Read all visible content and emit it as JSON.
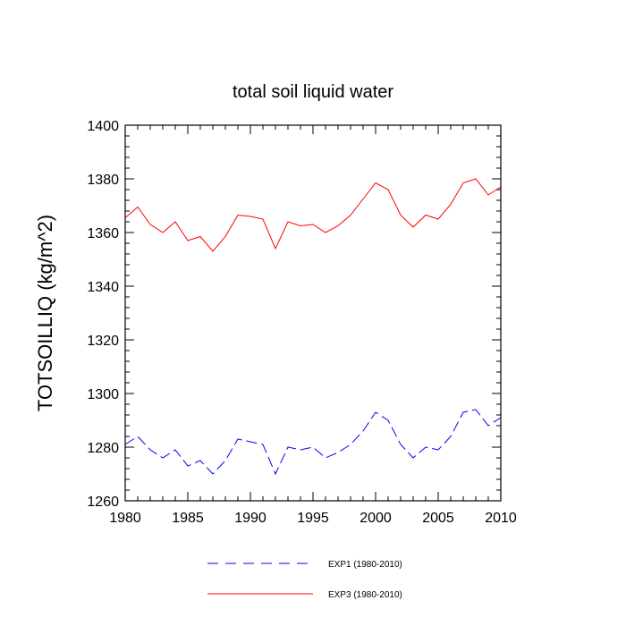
{
  "chart_data": {
    "type": "line",
    "title": "total soil liquid water",
    "xlabel": "",
    "ylabel": "TOTSOILLIQ  (kg/m^2)",
    "xlim": [
      1980,
      2010
    ],
    "ylim": [
      1260,
      1400
    ],
    "xticks": [
      1980,
      1985,
      1990,
      1995,
      2000,
      2005,
      2010
    ],
    "yticks": [
      1260,
      1280,
      1300,
      1320,
      1340,
      1360,
      1380,
      1400
    ],
    "x": [
      1980,
      1981,
      1982,
      1983,
      1984,
      1985,
      1986,
      1987,
      1988,
      1989,
      1990,
      1991,
      1992,
      1993,
      1994,
      1995,
      1996,
      1997,
      1998,
      1999,
      2000,
      2001,
      2002,
      2003,
      2004,
      2005,
      2006,
      2007,
      2008,
      2009,
      2010
    ],
    "legend_position": "bottom",
    "series": [
      {
        "name": "EXP1 (1980-2010)",
        "color": "#0000ff",
        "style": "dashed",
        "values": [
          1281,
          1284,
          1279,
          1276,
          1279,
          1273,
          1275,
          1270,
          1275,
          1283,
          1282,
          1281,
          1270,
          1280,
          1279,
          1280,
          1276,
          1278,
          1281,
          1286,
          1293,
          1290,
          1281,
          1276,
          1280,
          1279,
          1284,
          1293,
          1294,
          1288,
          1291
        ]
      },
      {
        "name": "EXP3 (1980-2010)",
        "color": "#ff0000",
        "style": "solid",
        "values": [
          1365.5,
          1369.5,
          1363,
          1360,
          1364,
          1357,
          1358.5,
          1353,
          1358.5,
          1366.5,
          1366,
          1365,
          1354,
          1364,
          1362.5,
          1363,
          1360,
          1362.5,
          1366.5,
          1372.5,
          1378.5,
          1376,
          1366.5,
          1362,
          1366.5,
          1365,
          1370.5,
          1378.5,
          1380,
          1374,
          1377
        ]
      }
    ]
  }
}
